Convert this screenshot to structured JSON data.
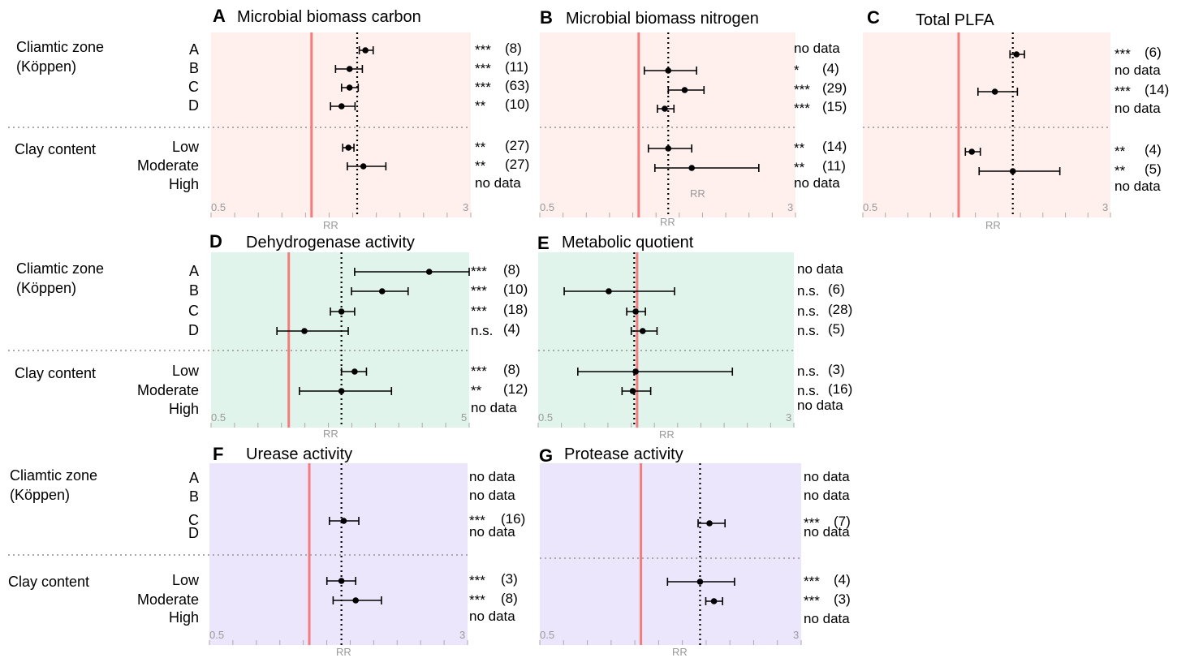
{
  "colors": {
    "nutrient_bg": "#fff0ee",
    "activity_bg": "#e0f4ec",
    "enzyme_bg": "#ece6fd",
    "reference_line": "#f47c7c",
    "divider": "#aaaaaa"
  },
  "labels": {
    "climatic_zone": "Cliamtic zone\n(Köppen)",
    "clay_content": "Clay content",
    "axis": "RR",
    "rows": [
      "A",
      "B",
      "C",
      "D",
      "Low",
      "Moderate",
      "High"
    ]
  },
  "chart_data": [
    {
      "letter": "A",
      "title": "Microbial biomass carbon",
      "type": "forest",
      "xlim": [
        0.5,
        3
      ],
      "tick_labels": [
        "0.5",
        "3"
      ],
      "reference_x": 1.0,
      "mean_x": 1.37,
      "rows": [
        {
          "label": "A",
          "mean": 1.45,
          "lo": 1.39,
          "hi": 1.53,
          "sig": "***",
          "n": "(8)"
        },
        {
          "label": "B",
          "mean": 1.3,
          "lo": 1.18,
          "hi": 1.42,
          "sig": "***",
          "n": "(11)"
        },
        {
          "label": "C",
          "mean": 1.3,
          "lo": 1.23,
          "hi": 1.38,
          "sig": "***",
          "n": "(63)"
        },
        {
          "label": "D",
          "mean": 1.23,
          "lo": 1.14,
          "hi": 1.35,
          "sig": "**",
          "n": "(10)"
        },
        {
          "label": "Low",
          "mean": 1.29,
          "lo": 1.24,
          "hi": 1.34,
          "sig": "**",
          "n": "(27)"
        },
        {
          "label": "Moderate",
          "mean": 1.43,
          "lo": 1.28,
          "hi": 1.67,
          "sig": "**",
          "n": "(27)"
        },
        {
          "label": "High",
          "mean": null,
          "lo": null,
          "hi": null,
          "sig": "",
          "n": "no data"
        }
      ]
    },
    {
      "letter": "B",
      "title": "Microbial biomass nitrogen",
      "type": "forest",
      "xlim": [
        0.5,
        3
      ],
      "tick_labels": [
        "0.5",
        "3"
      ],
      "reference_x": 1.0,
      "mean_x": 1.23,
      "rows": [
        {
          "label": "A",
          "mean": null,
          "lo": null,
          "hi": null,
          "sig": "",
          "n": "no data"
        },
        {
          "label": "B",
          "mean": 1.23,
          "lo": 1.04,
          "hi": 1.5,
          "sig": "*",
          "n": "(4)"
        },
        {
          "label": "C",
          "mean": 1.38,
          "lo": 1.23,
          "hi": 1.58,
          "sig": "***",
          "n": "(29)"
        },
        {
          "label": "D",
          "mean": 1.2,
          "lo": 1.14,
          "hi": 1.28,
          "sig": "***",
          "n": "(15)"
        },
        {
          "label": "Low",
          "mean": 1.23,
          "lo": 1.07,
          "hi": 1.45,
          "sig": "**",
          "n": "(14)"
        },
        {
          "label": "Moderate",
          "mean": 1.45,
          "lo": 1.12,
          "hi": 2.32,
          "sig": "**",
          "n": "(11)"
        },
        {
          "label": "High",
          "mean": null,
          "lo": null,
          "hi": null,
          "sig": "",
          "n": "no data"
        }
      ]
    },
    {
      "letter": "C",
      "title": "Total PLFA",
      "type": "forest",
      "xlim": [
        0.5,
        3
      ],
      "tick_labels": [
        "0.5",
        "3"
      ],
      "reference_x": 1.0,
      "mean_x": 1.48,
      "rows": [
        {
          "label": "A",
          "mean": 1.52,
          "lo": 1.45,
          "hi": 1.61,
          "sig": "***",
          "n": "(6)"
        },
        {
          "label": "B",
          "mean": null,
          "lo": null,
          "hi": null,
          "sig": "",
          "n": "no data"
        },
        {
          "label": "C",
          "mean": 1.3,
          "lo": 1.15,
          "hi": 1.53,
          "sig": "***",
          "n": "(14)"
        },
        {
          "label": "D",
          "mean": null,
          "lo": null,
          "hi": null,
          "sig": "",
          "n": "no data"
        },
        {
          "label": "Low",
          "mean": 1.1,
          "lo": 1.05,
          "hi": 1.17,
          "sig": "**",
          "n": "(4)"
        },
        {
          "label": "Moderate",
          "mean": 1.48,
          "lo": 1.16,
          "hi": 2.08,
          "sig": "**",
          "n": "(5)"
        },
        {
          "label": "High",
          "mean": null,
          "lo": null,
          "hi": null,
          "sig": "",
          "n": "no data"
        }
      ]
    },
    {
      "letter": "D",
      "title": "Dehydrogenase activity",
      "type": "forest",
      "xlim": [
        0.5,
        5
      ],
      "tick_labels": [
        "0.5",
        "5"
      ],
      "reference_x": 1.0,
      "mean_x": 1.6,
      "rows": [
        {
          "label": "A",
          "mean": 3.5,
          "lo": 1.8,
          "hi": 5.0,
          "sig": "***",
          "n": "(8)"
        },
        {
          "label": "B",
          "mean": 2.3,
          "lo": 1.75,
          "hi": 2.9,
          "sig": "***",
          "n": "(10)"
        },
        {
          "label": "C",
          "mean": 1.6,
          "lo": 1.45,
          "hi": 1.8,
          "sig": "***",
          "n": "(18)"
        },
        {
          "label": "D",
          "mean": 1.15,
          "lo": 0.9,
          "hi": 1.7,
          "sig": "n.s.",
          "n": "(4)"
        },
        {
          "label": "Low",
          "mean": 1.8,
          "lo": 1.6,
          "hi": 2.0,
          "sig": "***",
          "n": "(8)"
        },
        {
          "label": "Moderate",
          "mean": 1.6,
          "lo": 1.1,
          "hi": 2.5,
          "sig": "**",
          "n": "(12)"
        },
        {
          "label": "High",
          "mean": null,
          "lo": null,
          "hi": null,
          "sig": "",
          "n": "no data"
        }
      ]
    },
    {
      "letter": "E",
      "title": "Metabolic quotient",
      "type": "forest",
      "xlim": [
        0.5,
        3
      ],
      "tick_labels": [
        "0.5",
        "3"
      ],
      "reference_x": 1.0,
      "mean_x": 0.98,
      "rows": [
        {
          "label": "A",
          "mean": null,
          "lo": null,
          "hi": null,
          "sig": "",
          "n": "no data"
        },
        {
          "label": "B",
          "mean": 0.82,
          "lo": 0.6,
          "hi": 1.3,
          "sig": "n.s.",
          "n": "(6)"
        },
        {
          "label": "C",
          "mean": 0.99,
          "lo": 0.93,
          "hi": 1.06,
          "sig": "n.s.",
          "n": "(28)"
        },
        {
          "label": "D",
          "mean": 1.04,
          "lo": 0.96,
          "hi": 1.15,
          "sig": "n.s.",
          "n": "(5)"
        },
        {
          "label": "Low",
          "mean": 0.99,
          "lo": 0.66,
          "hi": 1.95,
          "sig": "n.s.",
          "n": "(3)"
        },
        {
          "label": "Moderate",
          "mean": 0.97,
          "lo": 0.9,
          "hi": 1.1,
          "sig": "n.s.",
          "n": "(16)"
        },
        {
          "label": "High",
          "mean": null,
          "lo": null,
          "hi": null,
          "sig": "",
          "n": "no data"
        }
      ]
    },
    {
      "letter": "F",
      "title": "Urease activity",
      "type": "forest",
      "xlim": [
        0.5,
        3
      ],
      "tick_labels": [
        "0.5",
        "3"
      ],
      "reference_x": 1.0,
      "mean_x": 1.25,
      "rows": [
        {
          "label": "A",
          "mean": null,
          "lo": null,
          "hi": null,
          "sig": "",
          "n": "no data"
        },
        {
          "label": "B",
          "mean": null,
          "lo": null,
          "hi": null,
          "sig": "",
          "n": "no data"
        },
        {
          "label": "C",
          "mean": 1.27,
          "lo": 1.15,
          "hi": 1.41,
          "sig": "***",
          "n": "(16)"
        },
        {
          "label": "D",
          "mean": null,
          "lo": null,
          "hi": null,
          "sig": "",
          "n": "no data"
        },
        {
          "label": "Low",
          "mean": 1.25,
          "lo": 1.13,
          "hi": 1.38,
          "sig": "***",
          "n": "(3)"
        },
        {
          "label": "Moderate",
          "mean": 1.38,
          "lo": 1.18,
          "hi": 1.65,
          "sig": "***",
          "n": "(8)"
        },
        {
          "label": "High",
          "mean": null,
          "lo": null,
          "hi": null,
          "sig": "",
          "n": "no data"
        }
      ]
    },
    {
      "letter": "G",
      "title": "Protease activity",
      "type": "forest",
      "xlim": [
        0.5,
        3
      ],
      "tick_labels": [
        "0.5",
        "3"
      ],
      "reference_x": 1.0,
      "mean_x": 1.5,
      "rows": [
        {
          "label": "A",
          "mean": null,
          "lo": null,
          "hi": null,
          "sig": "",
          "n": "no data"
        },
        {
          "label": "B",
          "mean": null,
          "lo": null,
          "hi": null,
          "sig": "",
          "n": "no data"
        },
        {
          "label": "C",
          "mean": 1.6,
          "lo": 1.48,
          "hi": 1.78,
          "sig": "***",
          "n": "(7)"
        },
        {
          "label": "D",
          "mean": null,
          "lo": null,
          "hi": null,
          "sig": "",
          "n": "no data"
        },
        {
          "label": "Low",
          "mean": 1.5,
          "lo": 1.2,
          "hi": 1.9,
          "sig": "***",
          "n": "(4)"
        },
        {
          "label": "Moderate",
          "mean": 1.65,
          "lo": 1.56,
          "hi": 1.75,
          "sig": "***",
          "n": "(3)"
        },
        {
          "label": "High",
          "mean": null,
          "lo": null,
          "hi": null,
          "sig": "",
          "n": "no data"
        }
      ]
    }
  ]
}
